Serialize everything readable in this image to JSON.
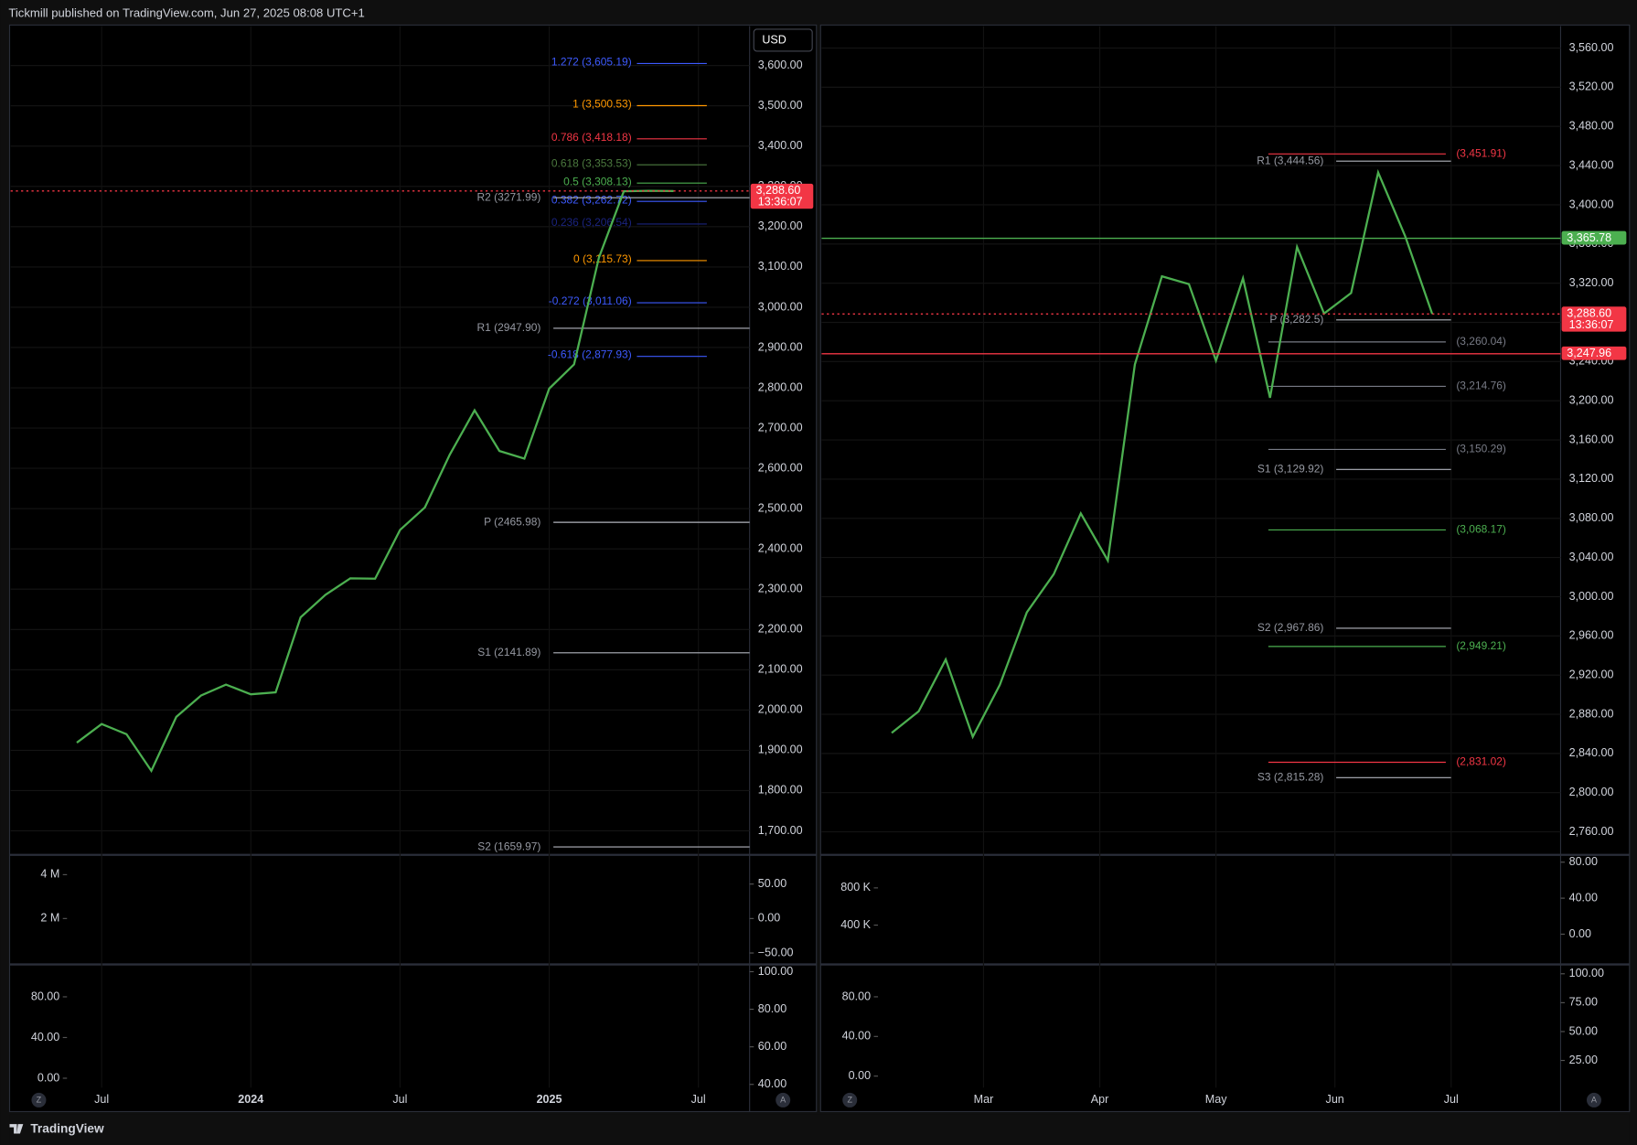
{
  "header": {
    "publisher": "Tickmill published on TradingView.com, Jun 27, 2025 08:08 UTC+1"
  },
  "footer": {
    "brand": "TradingView"
  },
  "currency_button": "USD",
  "axis_buttons": [
    "Z",
    "A"
  ],
  "chart_data": [
    {
      "type": "line",
      "color": "#4caf50",
      "values": [
        1919,
        1965,
        1940,
        1849,
        1983,
        2036,
        2063,
        2039,
        2044,
        2230,
        2286,
        2327,
        2326,
        2447,
        2503,
        2634,
        2744,
        2643,
        2624,
        2798,
        2858,
        3123,
        3288,
        3289,
        3288.6
      ],
      "xlim": [
        -2.66,
        27.06
      ],
      "xticks": [
        {
          "value": 1,
          "label": "Jul"
        },
        {
          "value": 7,
          "label": "2024"
        },
        {
          "value": 13,
          "label": "Jul"
        },
        {
          "value": 19,
          "label": "2025"
        },
        {
          "value": 25,
          "label": "Jul"
        }
      ],
      "ylim": [
        1643,
        3698
      ],
      "yticks": [
        {
          "value": 1700,
          "label": "1,700.00"
        },
        {
          "value": 1800,
          "label": "1,800.00"
        },
        {
          "value": 1900,
          "label": "1,900.00"
        },
        {
          "value": 2000,
          "label": "2,000.00"
        },
        {
          "value": 2100,
          "label": "2,100.00"
        },
        {
          "value": 2200,
          "label": "2,200.00"
        },
        {
          "value": 2300,
          "label": "2,300.00"
        },
        {
          "value": 2400,
          "label": "2,400.00"
        },
        {
          "value": 2500,
          "label": "2,500.00"
        },
        {
          "value": 2600,
          "label": "2,600.00"
        },
        {
          "value": 2700,
          "label": "2,700.00"
        },
        {
          "value": 2800,
          "label": "2,800.00"
        },
        {
          "value": 2900,
          "label": "2,900.00"
        },
        {
          "value": 3000,
          "label": "3,000.00"
        },
        {
          "value": 3100,
          "label": "3,100.00"
        },
        {
          "value": 3200,
          "label": "3,200.00"
        },
        {
          "value": 3300,
          "label": "3,300.00"
        },
        {
          "value": 3400,
          "label": "3,400.00"
        },
        {
          "value": 3500,
          "label": "3,500.00"
        },
        {
          "value": 3600,
          "label": "3,600.00"
        }
      ],
      "price_tags": [
        {
          "value": 3288.6,
          "label": "3,288.60",
          "time": "13:36:07",
          "color": "#f23645"
        }
      ],
      "fib_levels": [
        {
          "value": 3605.19,
          "label": "1.272 (3,605.19)",
          "color": "#3d5afe"
        },
        {
          "value": 3500.53,
          "label": "1 (3,500.53)",
          "color": "#ff9800"
        },
        {
          "value": 3418.18,
          "label": "0.786 (3,418.18)",
          "color": "#f23645"
        },
        {
          "value": 3353.53,
          "label": "0.618 (3,353.53)",
          "color": "#4c7a3f"
        },
        {
          "value": 3308.13,
          "label": "0.5 (3,308.13)",
          "color": "#4caf50"
        },
        {
          "value": 3262.72,
          "label": "0.382 (3,262.72)",
          "color": "#3d5afe"
        },
        {
          "value": 3206.54,
          "label": "0.236 (3,206.54)",
          "color": "#1a237e"
        },
        {
          "value": 3115.73,
          "label": "0 (3,115.73)",
          "color": "#ff9800"
        },
        {
          "value": 3011.06,
          "label": "-0.272 (3,011.06)",
          "color": "#3d5afe"
        },
        {
          "value": 2877.93,
          "label": "-0.618 (2,877.93)",
          "color": "#3d5afe"
        }
      ],
      "pivot_levels": [
        {
          "value": 3271.99,
          "label": "R2 (3271.99)"
        },
        {
          "value": 2947.9,
          "label": "R1 (2947.90)"
        },
        {
          "value": 2465.98,
          "label": "P (2465.98)"
        },
        {
          "value": 2141.89,
          "label": "S1 (2141.89)"
        },
        {
          "value": 1659.97,
          "label": "S2 (1659.97)"
        }
      ],
      "panels": [
        {
          "ylim": [
            0,
            4857000
          ],
          "yticks": [
            {
              "value": 2000000,
              "label": "2 M"
            },
            {
              "value": 4000000,
              "label": "4 M"
            }
          ],
          "y2lim": [
            -63.6,
            90.9
          ],
          "y2ticks": [
            {
              "value": -50,
              "label": "−50.00"
            },
            {
              "value": 0,
              "label": "0.00"
            },
            {
              "value": 50,
              "label": "50.00"
            }
          ]
        },
        {
          "ylim": [
            -9.2,
            110.8
          ],
          "yticks": [
            {
              "value": 0,
              "label": "0.00"
            },
            {
              "value": 40,
              "label": "40.00"
            },
            {
              "value": 80,
              "label": "80.00"
            }
          ],
          "y2lim": [
            38.3,
            103.3
          ],
          "y2ticks": [
            {
              "value": 40,
              "label": "40.00"
            },
            {
              "value": 60,
              "label": "60.00"
            },
            {
              "value": 80,
              "label": "80.00"
            },
            {
              "value": 100,
              "label": "100.00"
            }
          ]
        }
      ]
    },
    {
      "type": "line",
      "color": "#4caf50",
      "values": [
        2861,
        2883,
        2936,
        2857,
        2910,
        2984,
        3023,
        3085,
        3037,
        3237,
        3327,
        3319,
        3241,
        3325,
        3203,
        3357,
        3289,
        3310,
        3433,
        3368,
        3288.6
      ],
      "xlim": [
        -2.59,
        24.75
      ],
      "xticks": [
        {
          "value": 3.4,
          "label": "Mar"
        },
        {
          "value": 7.7,
          "label": "Apr"
        },
        {
          "value": 12,
          "label": "May"
        },
        {
          "value": 16.4,
          "label": "Jun"
        },
        {
          "value": 20.7,
          "label": "Jul"
        }
      ],
      "ylim": [
        2737.6,
        3582.4
      ],
      "yticks": [
        {
          "value": 2760,
          "label": "2,760.00"
        },
        {
          "value": 2800,
          "label": "2,800.00"
        },
        {
          "value": 2840,
          "label": "2,840.00"
        },
        {
          "value": 2880,
          "label": "2,880.00"
        },
        {
          "value": 2920,
          "label": "2,920.00"
        },
        {
          "value": 2960,
          "label": "2,960.00"
        },
        {
          "value": 3000,
          "label": "3,000.00"
        },
        {
          "value": 3040,
          "label": "3,040.00"
        },
        {
          "value": 3080,
          "label": "3,080.00"
        },
        {
          "value": 3120,
          "label": "3,120.00"
        },
        {
          "value": 3160,
          "label": "3,160.00"
        },
        {
          "value": 3200,
          "label": "3,200.00"
        },
        {
          "value": 3240,
          "label": "3,240.00"
        },
        {
          "value": 3280,
          "label": "3,280.00"
        },
        {
          "value": 3320,
          "label": "3,320.00"
        },
        {
          "value": 3360,
          "label": "3,360.00"
        },
        {
          "value": 3400,
          "label": "3,400.00"
        },
        {
          "value": 3440,
          "label": "3,440.00"
        },
        {
          "value": 3480,
          "label": "3,480.00"
        },
        {
          "value": 3520,
          "label": "3,520.00"
        },
        {
          "value": 3560,
          "label": "3,560.00"
        }
      ],
      "price_tags": [
        {
          "value": 3365.78,
          "label": "3,365.78",
          "color": "#4caf50"
        },
        {
          "value": 3288.6,
          "label": "3,288.60",
          "time": "13:36:07",
          "color": "#f23645"
        },
        {
          "value": 3247.96,
          "label": "3,247.96",
          "color": "#f23645"
        }
      ],
      "pivot_levels": [
        {
          "value": 3444.56,
          "label": "R1 (3,444.56)"
        },
        {
          "value": 3282.5,
          "label": "P (3,282.5)"
        },
        {
          "value": 3129.92,
          "label": "S1 (3,129.92)"
        },
        {
          "value": 2967.86,
          "label": "S2 (2,967.86)"
        },
        {
          "value": 2815.28,
          "label": "S3 (2,815.28)"
        }
      ],
      "levels": [
        {
          "value": 3451.91,
          "label": "(3,451.91)",
          "color": "#f23645"
        },
        {
          "value": 3260.04,
          "label": "(3,260.04)",
          "color": "#787b86"
        },
        {
          "value": 3214.76,
          "label": "(3,214.76)",
          "color": "#787b86"
        },
        {
          "value": 3150.29,
          "label": "(3,150.29)",
          "color": "#787b86"
        },
        {
          "value": 3068.17,
          "label": "(3,068.17)",
          "color": "#4caf50"
        },
        {
          "value": 2949.21,
          "label": "(2,949.21)",
          "color": "#4caf50"
        },
        {
          "value": 2831.02,
          "label": "(2,831.02)",
          "color": "#f23645"
        }
      ],
      "panels": [
        {
          "ylim": [
            0,
            1144000
          ],
          "yticks": [
            {
              "value": 400000,
              "label": "400 K"
            },
            {
              "value": 800000,
              "label": "800 K"
            }
          ],
          "y2lim": [
            -31.3,
            87
          ],
          "y2ticks": [
            {
              "value": 0,
              "label": "0.00"
            },
            {
              "value": 40,
              "label": "40.00"
            },
            {
              "value": 80,
              "label": "80.00"
            }
          ]
        },
        {
          "ylim": [
            -11.6,
            111.6
          ],
          "yticks": [
            {
              "value": 0,
              "label": "0.00"
            },
            {
              "value": 40,
              "label": "40.00"
            },
            {
              "value": 80,
              "label": "80.00"
            }
          ],
          "y2lim": [
            1.5,
            107.2
          ],
          "y2ticks": [
            {
              "value": 25,
              "label": "25.00"
            },
            {
              "value": 50,
              "label": "50.00"
            },
            {
              "value": 75,
              "label": "75.00"
            },
            {
              "value": 100,
              "label": "100.00"
            }
          ]
        }
      ]
    }
  ]
}
